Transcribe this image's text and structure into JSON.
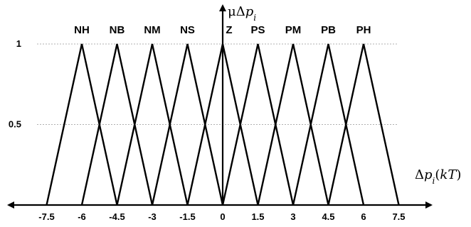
{
  "chart_data": {
    "type": "line",
    "title": "",
    "xlabel": "Δp_i(kT)",
    "ylabel": "μΔp_i",
    "xlim": [
      -8.8,
      8.8
    ],
    "ylim": [
      0,
      1
    ],
    "x_ticks": [
      "-7.5",
      "-6",
      "-4.5",
      "-3",
      "-1.5",
      "0",
      "1.5",
      "3",
      "4.5",
      "6",
      "7.5"
    ],
    "y_ticks": [
      "1",
      "0.5"
    ],
    "grid": "horizontal dashed at 0.5 and 1",
    "series": [
      {
        "name": "NH",
        "x": [
          -7.5,
          -6,
          -4.5
        ],
        "y": [
          0,
          1,
          0
        ]
      },
      {
        "name": "NB",
        "x": [
          -6,
          -4.5,
          -3
        ],
        "y": [
          0,
          1,
          0
        ]
      },
      {
        "name": "NM",
        "x": [
          -4.5,
          -3,
          -1.5
        ],
        "y": [
          0,
          1,
          0
        ]
      },
      {
        "name": "NS",
        "x": [
          -3,
          -1.5,
          0
        ],
        "y": [
          0,
          1,
          0
        ]
      },
      {
        "name": "Z",
        "x": [
          -1.5,
          0,
          1.5
        ],
        "y": [
          0,
          1,
          0
        ]
      },
      {
        "name": "PS",
        "x": [
          0,
          1.5,
          3
        ],
        "y": [
          0,
          1,
          0
        ]
      },
      {
        "name": "PM",
        "x": [
          1.5,
          3,
          4.5
        ],
        "y": [
          0,
          1,
          0
        ]
      },
      {
        "name": "PB",
        "x": [
          3,
          4.5,
          6
        ],
        "y": [
          0,
          1,
          0
        ]
      },
      {
        "name": "PH",
        "x": [
          4.5,
          6,
          7.5
        ],
        "y": [
          0,
          1,
          0
        ]
      }
    ]
  }
}
